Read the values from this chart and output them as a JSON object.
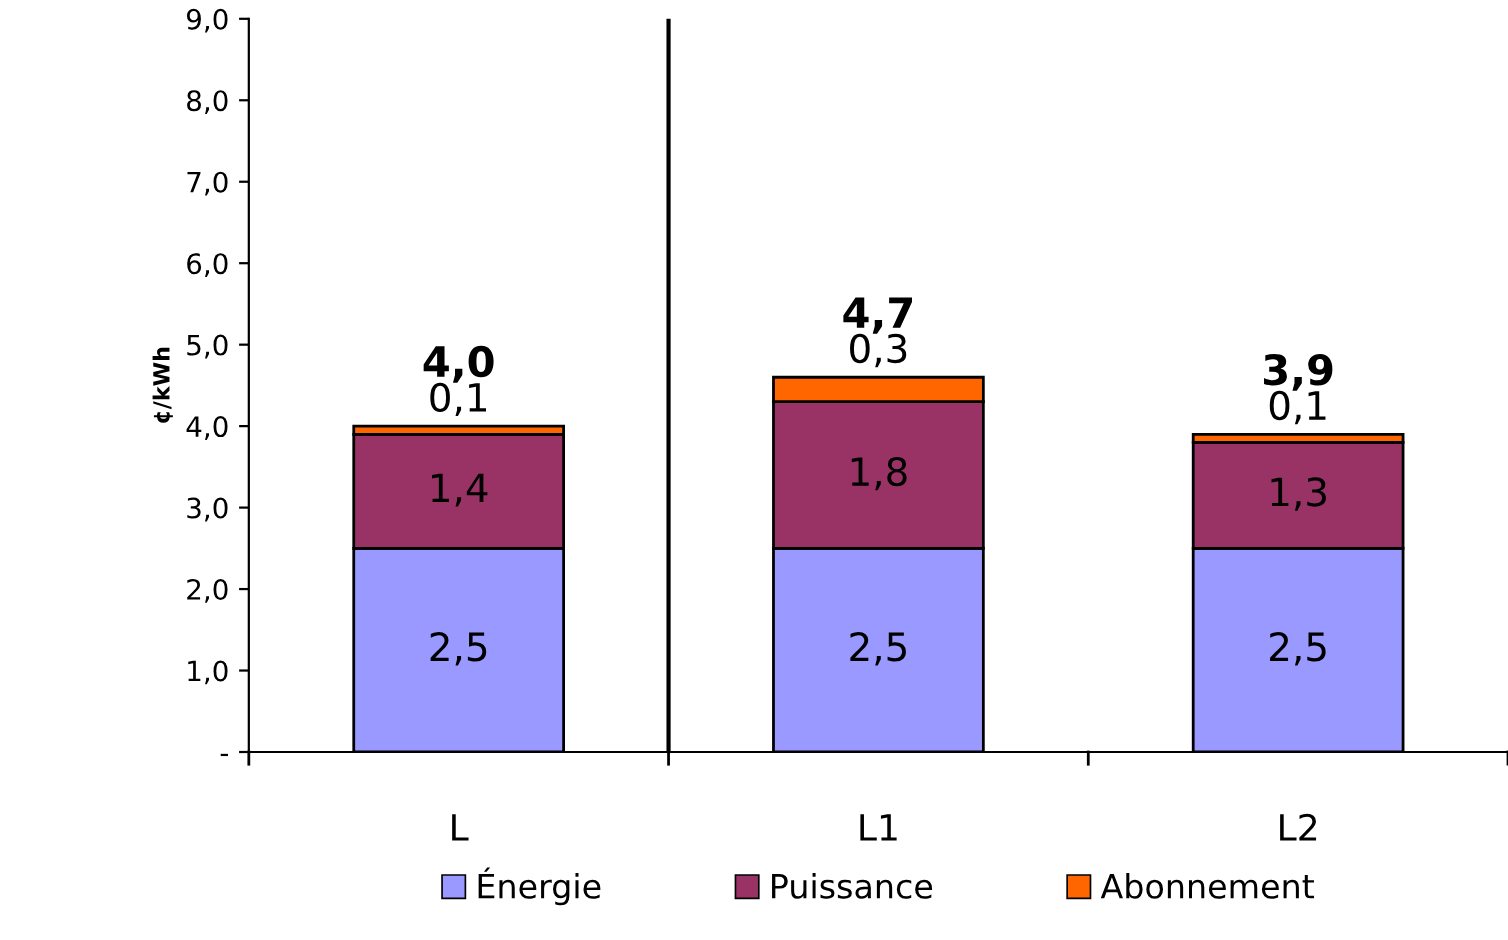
{
  "chart_data": {
    "type": "bar",
    "stacked": true,
    "ylabel": "¢/kWh",
    "categories": [
      "L",
      "L1",
      "L2"
    ],
    "series": [
      {
        "name": "Énergie",
        "color": "#9999ff",
        "values": [
          2.5,
          2.5,
          2.5
        ],
        "value_labels": [
          "2,5",
          "2,5",
          "2,5"
        ]
      },
      {
        "name": "Puissance",
        "color": "#993366",
        "values": [
          1.4,
          1.8,
          1.3
        ],
        "value_labels": [
          "1,4",
          "1,8",
          "1,3"
        ]
      },
      {
        "name": "Abonnement",
        "color": "#ff6600",
        "values": [
          0.1,
          0.3,
          0.1
        ],
        "value_labels": [
          "0,1",
          "0,3",
          "0,1"
        ]
      }
    ],
    "totals": [
      "4,0",
      "4,7",
      "3,9"
    ],
    "ylim": [
      0,
      9
    ],
    "yticks": [
      {
        "value": 0,
        "label": "-"
      },
      {
        "value": 1,
        "label": "1,0"
      },
      {
        "value": 2,
        "label": "2,0"
      },
      {
        "value": 3,
        "label": "3,0"
      },
      {
        "value": 4,
        "label": "4,0"
      },
      {
        "value": 5,
        "label": "5,0"
      },
      {
        "value": 6,
        "label": "6,0"
      },
      {
        "value": 7,
        "label": "7,0"
      },
      {
        "value": 8,
        "label": "8,0"
      },
      {
        "value": 9,
        "label": "9,0"
      }
    ],
    "grid": false,
    "legend": "bottom"
  }
}
